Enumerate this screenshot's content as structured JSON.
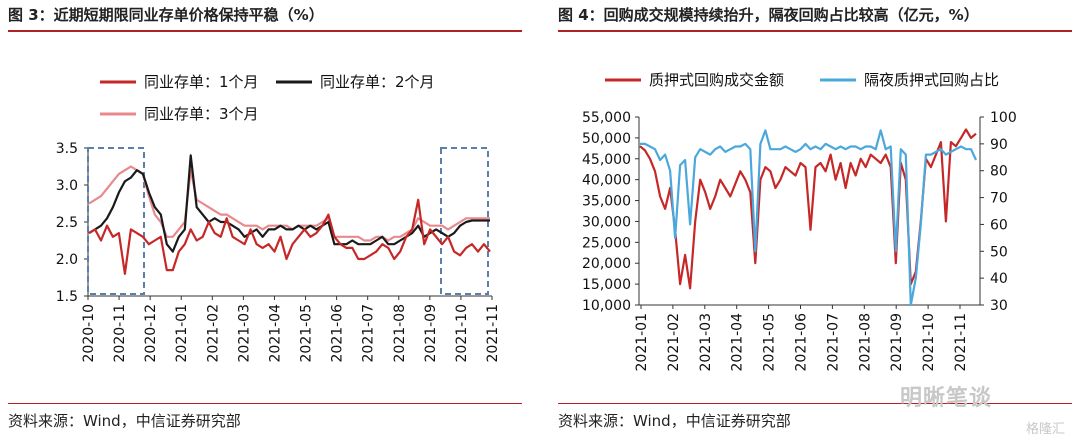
{
  "left": {
    "title": "图 3：近期短期限同业存单价格保持平稳（%）",
    "source": "资料来源：Wind，中信证券研究部",
    "colors": {
      "m1": "#c62828",
      "m2": "#1a1a1a",
      "m3": "#e8898c",
      "box": "#5b7fa8"
    }
  },
  "right": {
    "title": "图 4：回购成交规模持续抬升，隔夜回购占比较高（亿元，%）",
    "source": "资料来源：Wind，中信证券研究部",
    "colors": {
      "amount": "#c62828",
      "share": "#4aa8dc"
    }
  },
  "watermark": "明晰笔谈",
  "watermark_small": "格隆汇",
  "chart_data": [
    {
      "type": "line",
      "title": "近期短期限同业存单价格保持平稳",
      "y_unit": "%",
      "ylim": [
        1.5,
        3.5
      ],
      "yticks": [
        "3.5",
        "3.0",
        "2.5",
        "2.0",
        "1.5"
      ],
      "x_ticks": [
        "2020-10",
        "2020-11",
        "2020-12",
        "2021-01",
        "2021-02",
        "2021-03",
        "2021-04",
        "2021-05",
        "2021-06",
        "2021-07",
        "2021-08",
        "2021-09",
        "2021-10",
        "2021-11"
      ],
      "legend_placement": "top",
      "annotations": [
        "dashed box 2020-10 to 2020-12",
        "dashed box 2021-10 to 2021-11"
      ],
      "series": [
        {
          "name": "同业存单：1个月",
          "values": [
            2.35,
            2.4,
            2.25,
            2.45,
            2.3,
            2.35,
            1.8,
            2.4,
            2.35,
            2.3,
            2.2,
            2.25,
            2.3,
            1.85,
            1.85,
            2.1,
            2.2,
            2.4,
            2.25,
            2.3,
            2.5,
            2.35,
            2.3,
            2.55,
            2.3,
            2.25,
            2.2,
            2.4,
            2.2,
            2.15,
            2.2,
            2.1,
            2.3,
            2.0,
            2.2,
            2.3,
            2.4,
            2.3,
            2.35,
            2.45,
            2.6,
            2.3,
            2.2,
            2.15,
            2.15,
            2.0,
            2.0,
            2.05,
            2.1,
            2.2,
            2.15,
            2.0,
            2.1,
            2.3,
            2.4,
            2.8,
            2.2,
            2.4,
            2.3,
            2.2,
            2.3,
            2.1,
            2.05,
            2.15,
            2.2,
            2.1,
            2.2,
            2.1
          ]
        },
        {
          "name": "同业存单：2个月",
          "values": [
            2.35,
            2.4,
            2.45,
            2.55,
            2.7,
            2.9,
            3.05,
            3.1,
            3.2,
            3.15,
            2.9,
            2.7,
            2.6,
            2.2,
            2.1,
            2.3,
            2.4,
            3.4,
            2.7,
            2.6,
            2.5,
            2.55,
            2.5,
            2.5,
            2.45,
            2.4,
            2.3,
            2.35,
            2.4,
            2.3,
            2.4,
            2.4,
            2.45,
            2.4,
            2.4,
            2.45,
            2.4,
            2.45,
            2.4,
            2.45,
            2.5,
            2.2,
            2.2,
            2.2,
            2.25,
            2.2,
            2.2,
            2.2,
            2.25,
            2.3,
            2.2,
            2.2,
            2.25,
            2.3,
            2.35,
            2.45,
            2.3,
            2.35,
            2.4,
            2.35,
            2.3,
            2.35,
            2.45,
            2.5,
            2.52,
            2.52,
            2.52,
            2.52
          ]
        },
        {
          "name": "同业存单：3个月",
          "values": [
            2.75,
            2.8,
            2.85,
            2.95,
            3.05,
            3.15,
            3.2,
            3.25,
            3.2,
            3.15,
            2.85,
            2.6,
            2.5,
            2.3,
            2.3,
            2.4,
            2.5,
            3.2,
            2.8,
            2.75,
            2.7,
            2.65,
            2.6,
            2.6,
            2.55,
            2.5,
            2.45,
            2.45,
            2.45,
            2.4,
            2.45,
            2.45,
            2.45,
            2.45,
            2.4,
            2.45,
            2.45,
            2.45,
            2.45,
            2.5,
            2.55,
            2.3,
            2.3,
            2.3,
            2.3,
            2.3,
            2.25,
            2.25,
            2.3,
            2.3,
            2.25,
            2.3,
            2.3,
            2.35,
            2.4,
            2.55,
            2.5,
            2.45,
            2.45,
            2.45,
            2.4,
            2.45,
            2.5,
            2.55,
            2.55,
            2.55,
            2.55,
            2.55
          ]
        }
      ]
    },
    {
      "type": "line",
      "title": "回购成交规模持续抬升，隔夜回购占比较高",
      "y_unit": "亿元",
      "y2_unit": "%",
      "ylim": [
        10000,
        55000
      ],
      "y2lim": [
        30,
        100
      ],
      "yticks": [
        "55,000",
        "50,000",
        "45,000",
        "40,000",
        "35,000",
        "30,000",
        "25,000",
        "20,000",
        "15,000",
        "10,000"
      ],
      "y2ticks": [
        "100",
        "90",
        "80",
        "70",
        "60",
        "50",
        "40",
        "30"
      ],
      "x_ticks": [
        "2021-01",
        "2021-02",
        "2021-03",
        "2021-04",
        "2021-05",
        "2021-06",
        "2021-07",
        "2021-08",
        "2021-09",
        "2021-10",
        "2021-11"
      ],
      "legend_placement": "top",
      "series": [
        {
          "name": "质押式回购成交金额",
          "axis": "left",
          "values": [
            48000,
            47000,
            45000,
            42000,
            36000,
            33000,
            38000,
            28000,
            15000,
            22000,
            14000,
            30000,
            40000,
            37000,
            33000,
            36000,
            40000,
            38000,
            36000,
            39000,
            42000,
            40000,
            37000,
            20000,
            40000,
            43000,
            42000,
            38000,
            40000,
            43000,
            42000,
            41000,
            44000,
            43000,
            28000,
            43000,
            44000,
            42000,
            46000,
            40000,
            44000,
            38000,
            44000,
            41000,
            45000,
            43000,
            46000,
            45000,
            44000,
            46000,
            43000,
            20000,
            44000,
            40000,
            15000,
            18000,
            30000,
            45000,
            43000,
            46000,
            49000,
            30000,
            49000,
            48000,
            50000,
            52000,
            50000,
            51000
          ]
        },
        {
          "name": "隔夜质押式回购占比",
          "axis": "right",
          "values": [
            90,
            90,
            89,
            88,
            84,
            86,
            80,
            55,
            82,
            84,
            60,
            85,
            88,
            87,
            86,
            88,
            89,
            87,
            88,
            89,
            89,
            90,
            88,
            50,
            90,
            95,
            88,
            88,
            88,
            89,
            88,
            87,
            88,
            90,
            88,
            89,
            88,
            90,
            89,
            88,
            89,
            88,
            89,
            89,
            88,
            89,
            89,
            88,
            95,
            88,
            89,
            50,
            88,
            86,
            30,
            40,
            60,
            86,
            86,
            87,
            88,
            86,
            87,
            88,
            89,
            88,
            88,
            84
          ]
        }
      ]
    }
  ]
}
